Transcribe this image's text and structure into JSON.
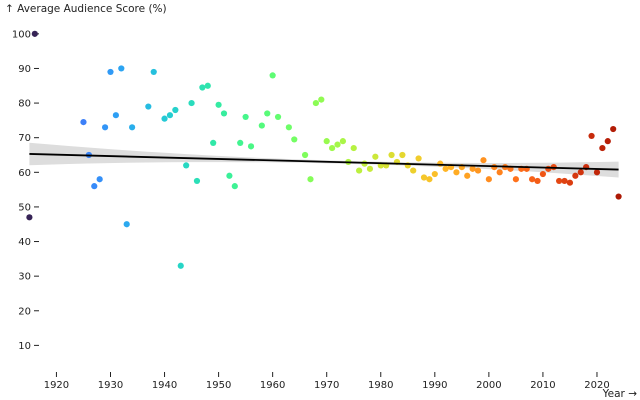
{
  "chart_data": {
    "type": "scatter",
    "ylabel": "↑ Average Audience Score (%)",
    "xlabel": "Year →",
    "xlim": [
      1914,
      2025
    ],
    "ylim": [
      0,
      104
    ],
    "x_ticks": [
      1920,
      1930,
      1940,
      1950,
      1960,
      1970,
      1980,
      1990,
      2000,
      2010,
      2020
    ],
    "y_ticks": [
      10,
      20,
      30,
      40,
      50,
      60,
      70,
      80,
      90,
      100
    ],
    "grid": false,
    "legend": "none",
    "colormap": "turbo",
    "trendline": {
      "x": [
        1915,
        2024
      ],
      "y": [
        65.3,
        60.8
      ],
      "color": "#000000",
      "band_color": "#dddddd"
    },
    "points": [
      [
        1915,
        47
      ],
      [
        1916,
        100
      ],
      [
        1925,
        74.5
      ],
      [
        1926,
        65
      ],
      [
        1927,
        56
      ],
      [
        1928,
        58
      ],
      [
        1929,
        73
      ],
      [
        1930,
        89
      ],
      [
        1931,
        76.5
      ],
      [
        1932,
        90
      ],
      [
        1933,
        45
      ],
      [
        1934,
        73
      ],
      [
        1937,
        79
      ],
      [
        1938,
        89
      ],
      [
        1940,
        75.5
      ],
      [
        1941,
        76.5
      ],
      [
        1942,
        78
      ],
      [
        1943,
        33
      ],
      [
        1944,
        62
      ],
      [
        1945,
        80
      ],
      [
        1946,
        57.5
      ],
      [
        1947,
        84.5
      ],
      [
        1948,
        85
      ],
      [
        1949,
        68.5
      ],
      [
        1950,
        79.5
      ],
      [
        1951,
        77
      ],
      [
        1952,
        59
      ],
      [
        1953,
        56
      ],
      [
        1954,
        68.5
      ],
      [
        1955,
        76
      ],
      [
        1956,
        67.5
      ],
      [
        1958,
        73.5
      ],
      [
        1959,
        77
      ],
      [
        1960,
        88
      ],
      [
        1961,
        76
      ],
      [
        1963,
        73
      ],
      [
        1964,
        69.5
      ],
      [
        1966,
        65
      ],
      [
        1967,
        58
      ],
      [
        1968,
        80
      ],
      [
        1969,
        81
      ],
      [
        1970,
        69
      ],
      [
        1971,
        67
      ],
      [
        1972,
        68
      ],
      [
        1973,
        69
      ],
      [
        1974,
        63
      ],
      [
        1975,
        67
      ],
      [
        1976,
        60.5
      ],
      [
        1977,
        62.5
      ],
      [
        1978,
        61
      ],
      [
        1979,
        64.5
      ],
      [
        1980,
        62
      ],
      [
        1981,
        62
      ],
      [
        1982,
        65
      ],
      [
        1983,
        63
      ],
      [
        1984,
        65
      ],
      [
        1985,
        62
      ],
      [
        1986,
        60.5
      ],
      [
        1987,
        64
      ],
      [
        1988,
        58.5
      ],
      [
        1989,
        58
      ],
      [
        1990,
        59.5
      ],
      [
        1991,
        62.5
      ],
      [
        1992,
        61
      ],
      [
        1993,
        61.5
      ],
      [
        1994,
        60
      ],
      [
        1995,
        61.5
      ],
      [
        1996,
        59
      ],
      [
        1997,
        61
      ],
      [
        1998,
        60.5
      ],
      [
        1999,
        63.5
      ],
      [
        2000,
        58
      ],
      [
        2001,
        61.5
      ],
      [
        2002,
        60
      ],
      [
        2003,
        61.5
      ],
      [
        2004,
        61
      ],
      [
        2005,
        58
      ],
      [
        2006,
        61
      ],
      [
        2007,
        61
      ],
      [
        2008,
        58
      ],
      [
        2009,
        57.5
      ],
      [
        2010,
        59.5
      ],
      [
        2011,
        61
      ],
      [
        2012,
        61.5
      ],
      [
        2013,
        57.5
      ],
      [
        2014,
        57.5
      ],
      [
        2015,
        57
      ],
      [
        2016,
        59
      ],
      [
        2017,
        60
      ],
      [
        2018,
        61.5
      ],
      [
        2019,
        70.5
      ],
      [
        2020,
        60
      ],
      [
        2021,
        67
      ],
      [
        2022,
        69
      ],
      [
        2023,
        72.5
      ],
      [
        2024,
        53
      ]
    ]
  }
}
